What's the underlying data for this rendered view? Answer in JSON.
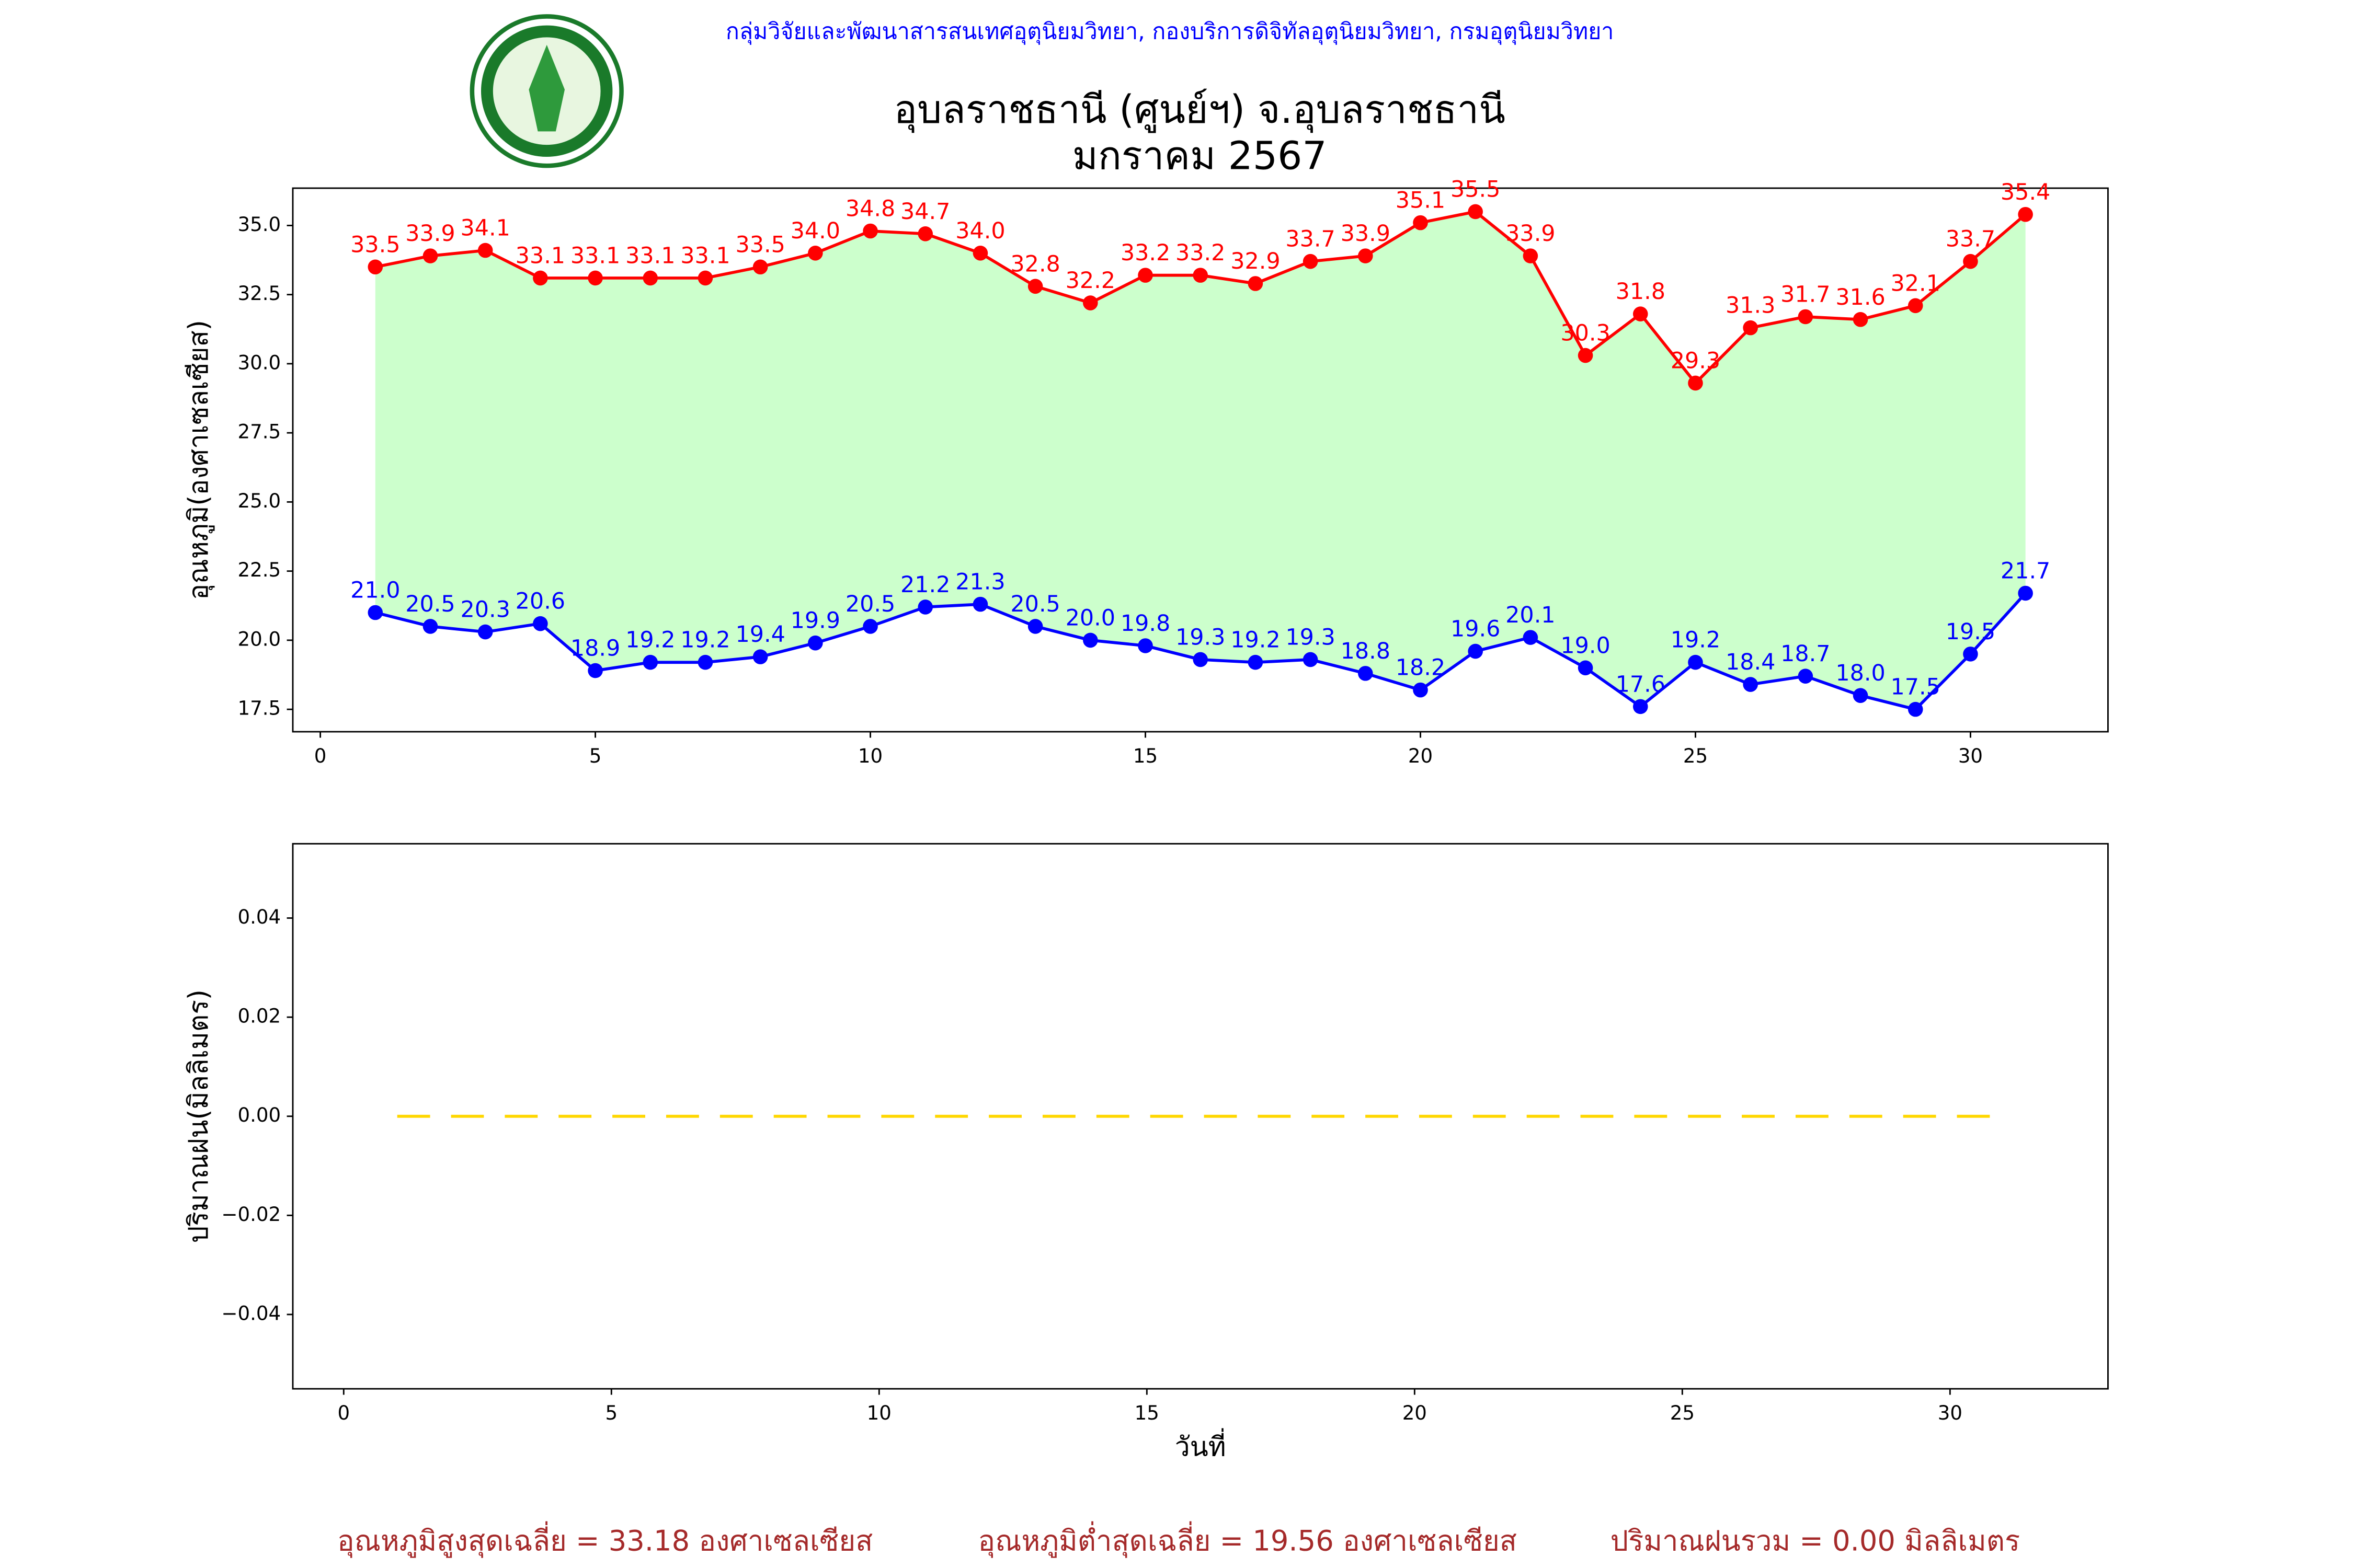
{
  "header": {
    "org": "กลุ่มวิจัยและพัฒนาสารสนเทศอุตุนิยมวิทยา, กองบริการดิจิทัลอุตุนิยมวิทยา, กรมอุตุนิยมวิทยา"
  },
  "chart_data": [
    {
      "type": "line",
      "title": "อุบลราชธานี (ศูนย์ฯ) จ.อุบลราชธานี",
      "subtitle": "มกราคม 2567",
      "y_label": "อุณหภูมิ(องศาเซลเซียส)",
      "fill_between": "#ccffcc",
      "x": [
        1,
        2,
        3,
        4,
        5,
        6,
        7,
        8,
        9,
        10,
        11,
        12,
        13,
        14,
        15,
        16,
        17,
        18,
        19,
        20,
        21,
        22,
        23,
        24,
        25,
        26,
        27,
        28,
        29,
        30,
        31
      ],
      "series": [
        {
          "name": "max",
          "color": "#ff0000",
          "marker": true,
          "values": [
            33.5,
            33.9,
            34.1,
            33.1,
            33.1,
            33.1,
            33.1,
            33.5,
            34.0,
            34.8,
            34.7,
            34.0,
            32.8,
            32.2,
            33.2,
            33.2,
            32.9,
            33.7,
            33.9,
            35.1,
            35.5,
            33.9,
            30.3,
            31.8,
            29.3,
            31.3,
            31.7,
            31.6,
            32.1,
            33.7,
            35.4
          ],
          "value_labels": [
            "33.5",
            "33.9",
            "34.1",
            "33.1",
            "33.1",
            "33.1",
            "33.1",
            "33.5",
            "34.0",
            "34.8",
            "34.7",
            "34.0",
            "32.8",
            "32.2",
            "33.2",
            "33.2",
            "32.9",
            "33.7",
            "33.9",
            "35.1",
            "35.5",
            "33.9",
            "30.3",
            "31.8",
            "29.3",
            "31.3",
            "31.7",
            "31.6",
            "32.1",
            "33.7",
            "35.4"
          ]
        },
        {
          "name": "min",
          "color": "#0000ff",
          "marker": true,
          "values": [
            21.0,
            20.5,
            20.3,
            20.6,
            18.9,
            19.2,
            19.2,
            19.4,
            19.9,
            20.5,
            21.2,
            21.3,
            20.5,
            20.0,
            19.8,
            19.3,
            19.2,
            19.3,
            18.8,
            18.2,
            19.6,
            20.1,
            19.0,
            17.6,
            19.2,
            18.4,
            18.7,
            18.0,
            17.5,
            19.5,
            21.7
          ],
          "value_labels": [
            "21.0",
            "20.5",
            "20.3",
            "20.6",
            "18.9",
            "19.2",
            "19.2",
            "19.4",
            "19.9",
            "20.5",
            "21.2",
            "21.3",
            "20.5",
            "20.0",
            "19.8",
            "19.3",
            "19.2",
            "19.3",
            "18.8",
            "18.2",
            "19.6",
            "20.1",
            "19.0",
            "17.6",
            "19.2",
            "18.4",
            "18.7",
            "18.0",
            "17.5",
            "19.5",
            "21.7"
          ]
        }
      ],
      "xlim": [
        -0.5,
        32.5
      ],
      "xticks": [
        0,
        5,
        10,
        15,
        20,
        25,
        30
      ],
      "ylim": [
        16.69,
        36.35
      ],
      "yticks": [
        {
          "value": 17.5,
          "label": "17.5"
        },
        {
          "value": 20,
          "label": "20.0"
        },
        {
          "value": 22.5,
          "label": "22.5"
        },
        {
          "value": 25,
          "label": "25.0"
        },
        {
          "value": 27.5,
          "label": "27.5"
        },
        {
          "value": 30,
          "label": "30.0"
        },
        {
          "value": 32.5,
          "label": "32.5"
        },
        {
          "value": 35,
          "label": "35.0"
        }
      ]
    },
    {
      "type": "line",
      "y_label": "ปริมาณฝน(มิลลิเมตร)",
      "x_label": "วันที่",
      "x": [
        1,
        2,
        3,
        4,
        5,
        6,
        7,
        8,
        9,
        10,
        11,
        12,
        13,
        14,
        15,
        16,
        17,
        18,
        19,
        20,
        21,
        22,
        23,
        24,
        25,
        26,
        27,
        28,
        29,
        30,
        31
      ],
      "series": [
        {
          "name": "rain",
          "color": "#ffd700",
          "dashed": true,
          "values": [
            0,
            0,
            0,
            0,
            0,
            0,
            0,
            0,
            0,
            0,
            0,
            0,
            0,
            0,
            0,
            0,
            0,
            0,
            0,
            0,
            0,
            0,
            0,
            0,
            0,
            0,
            0,
            0,
            0,
            0,
            0
          ]
        }
      ],
      "xlim": [
        -0.95,
        32.95
      ],
      "xticks": [
        0,
        5,
        10,
        15,
        20,
        25,
        30
      ],
      "ylim": [
        -0.055,
        0.055
      ],
      "yticks": [
        {
          "value": -0.04,
          "label": "−0.04"
        },
        {
          "value": -0.02,
          "label": "−0.02"
        },
        {
          "value": 0,
          "label": "0.00"
        },
        {
          "value": 0.02,
          "label": "0.02"
        },
        {
          "value": 0.04,
          "label": "0.04"
        }
      ]
    }
  ],
  "footer": [
    "อุณหภูมิสูงสุดเฉลี่ย = 33.18 องศาเซลเซียส",
    "อุณหภูมิต่ำสุดเฉลี่ย = 19.56 องศาเซลเซียส",
    "ปริมาณฝนรวม = 0.00 มิลลิเมตร"
  ]
}
